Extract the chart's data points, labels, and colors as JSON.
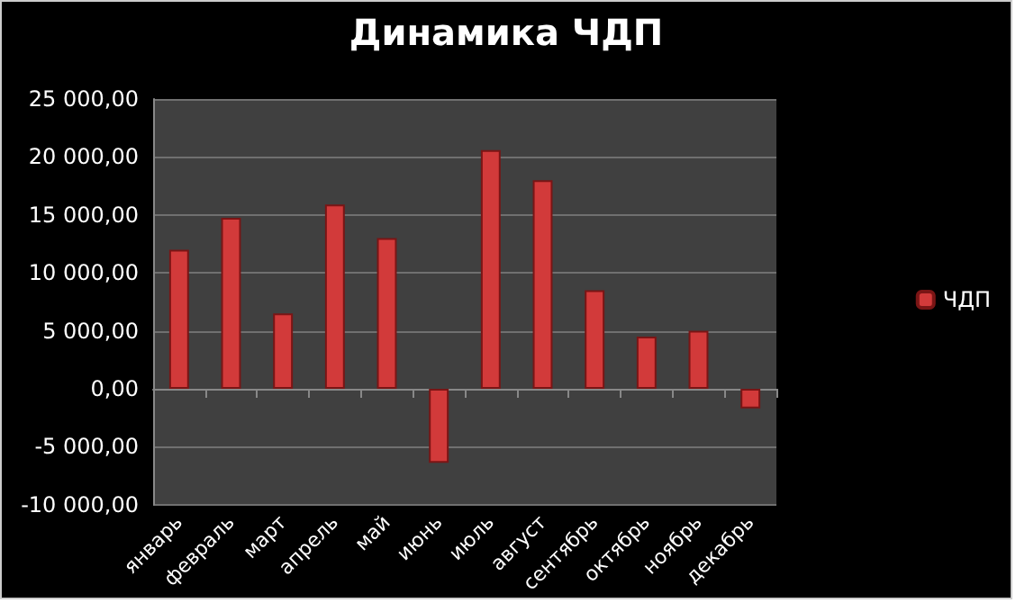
{
  "chart_data": {
    "type": "bar",
    "title": "Динамика ЧДП",
    "categories": [
      "январь",
      "февраль",
      "март",
      "апрель",
      "май",
      "июнь",
      "июль",
      "август",
      "сентябрь",
      "октябрь",
      "ноябрь",
      "декабрь"
    ],
    "series": [
      {
        "name": "ЧДП",
        "color": "#d23a3a",
        "values": [
          12000,
          14750,
          6500,
          15900,
          13000,
          -6400,
          20600,
          18000,
          8500,
          4500,
          5000,
          -1700
        ]
      }
    ],
    "ylim": [
      -10000,
      25000
    ],
    "yticks": [
      {
        "value": -10000,
        "label": "-10 000,00"
      },
      {
        "value": -5000,
        "label": "-5 000,00"
      },
      {
        "value": 0,
        "label": "0,00"
      },
      {
        "value": 5000,
        "label": "5 000,00"
      },
      {
        "value": 10000,
        "label": "10 000,00"
      },
      {
        "value": 15000,
        "label": "15 000,00"
      },
      {
        "value": 20000,
        "label": "20 000,00"
      },
      {
        "value": 25000,
        "label": "25 000,00"
      }
    ],
    "grid": "y",
    "legend": "right"
  }
}
